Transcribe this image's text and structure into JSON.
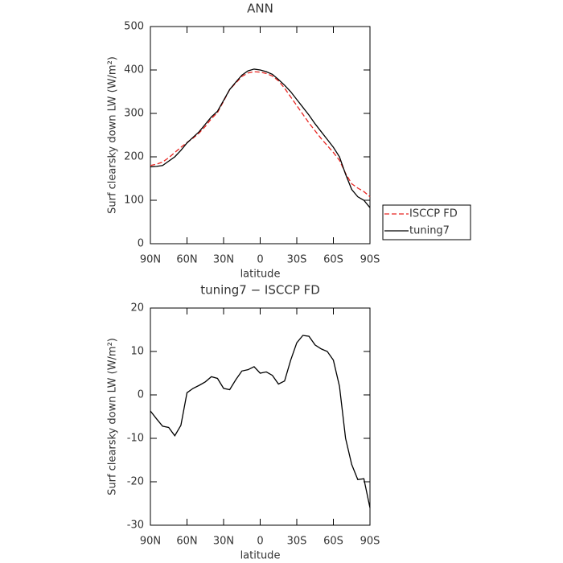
{
  "chart_data": [
    {
      "type": "line",
      "title": "ANN",
      "xlabel": "latitude",
      "ylabel": "Surf clearsky down LW (W/m²)",
      "x": [
        90,
        85,
        80,
        75,
        70,
        65,
        60,
        55,
        50,
        45,
        40,
        35,
        30,
        25,
        20,
        15,
        10,
        5,
        0,
        -5,
        -10,
        -15,
        -20,
        -25,
        -30,
        -35,
        -40,
        -45,
        -50,
        -55,
        -60,
        -65,
        -70,
        -75,
        -80,
        -85,
        -90
      ],
      "xlim": [
        90,
        -90
      ],
      "xticks": [
        {
          "value": 90,
          "label": "90N"
        },
        {
          "value": 60,
          "label": "60N"
        },
        {
          "value": 30,
          "label": "30N"
        },
        0,
        {
          "value": -30,
          "label": "30S"
        },
        {
          "value": -60,
          "label": "60S"
        },
        {
          "value": -90,
          "label": "90S"
        }
      ],
      "ylim": [
        0,
        500
      ],
      "yticks": [
        0,
        100,
        200,
        300,
        400,
        500
      ],
      "legend": "right",
      "series": [
        {
          "name": "ISCCP FD",
          "color": "#e8231f",
          "linestyle": "dashed",
          "values": [
            180,
            183,
            188,
            198,
            210,
            222,
            233,
            243,
            255,
            270,
            288,
            302,
            328,
            355,
            370,
            385,
            393,
            396,
            395,
            392,
            386,
            375,
            358,
            338,
            318,
            298,
            278,
            260,
            242,
            226,
            210,
            192,
            162,
            138,
            128,
            120,
            108
          ]
        },
        {
          "name": "tuning7",
          "color": "#000000",
          "linestyle": "solid",
          "values": [
            177,
            178,
            180,
            190,
            200,
            215,
            232,
            245,
            258,
            275,
            292,
            305,
            330,
            355,
            372,
            388,
            398,
            402,
            400,
            396,
            390,
            378,
            365,
            350,
            332,
            314,
            296,
            276,
            258,
            240,
            222,
            200,
            160,
            125,
            108,
            100,
            83
          ]
        }
      ]
    },
    {
      "type": "line",
      "title": "tuning7 − ISCCP FD",
      "xlabel": "latitude",
      "ylabel": "Surf clearsky down LW (W/m²)",
      "x": [
        90,
        85,
        80,
        75,
        70,
        65,
        60,
        55,
        50,
        45,
        40,
        35,
        30,
        25,
        20,
        15,
        10,
        5,
        0,
        -5,
        -10,
        -15,
        -20,
        -25,
        -30,
        -35,
        -40,
        -45,
        -50,
        -55,
        -60,
        -65,
        -70,
        -75,
        -80,
        -85,
        -90
      ],
      "xlim": [
        90,
        -90
      ],
      "xticks": [
        {
          "value": 90,
          "label": "90N"
        },
        {
          "value": 60,
          "label": "60N"
        },
        {
          "value": 30,
          "label": "30N"
        },
        0,
        {
          "value": -30,
          "label": "30S"
        },
        {
          "value": -60,
          "label": "60S"
        },
        {
          "value": -90,
          "label": "90S"
        }
      ],
      "ylim": [
        -30,
        20
      ],
      "yticks": [
        -30,
        -20,
        -10,
        0,
        10,
        20
      ],
      "series": [
        {
          "color": "#000000",
          "linestyle": "solid",
          "values": [
            -3.7,
            -5.5,
            -7.2,
            -7.5,
            -9.4,
            -7,
            0.5,
            1.5,
            2.2,
            3.0,
            4.2,
            3.8,
            1.5,
            1.2,
            3.5,
            5.5,
            5.8,
            6.5,
            5.0,
            5.3,
            4.5,
            2.5,
            3.2,
            8,
            12,
            13.7,
            13.5,
            11.5,
            10.6,
            10,
            8,
            2,
            -10,
            -16,
            -19.5,
            -19.3,
            -26
          ]
        }
      ]
    }
  ]
}
